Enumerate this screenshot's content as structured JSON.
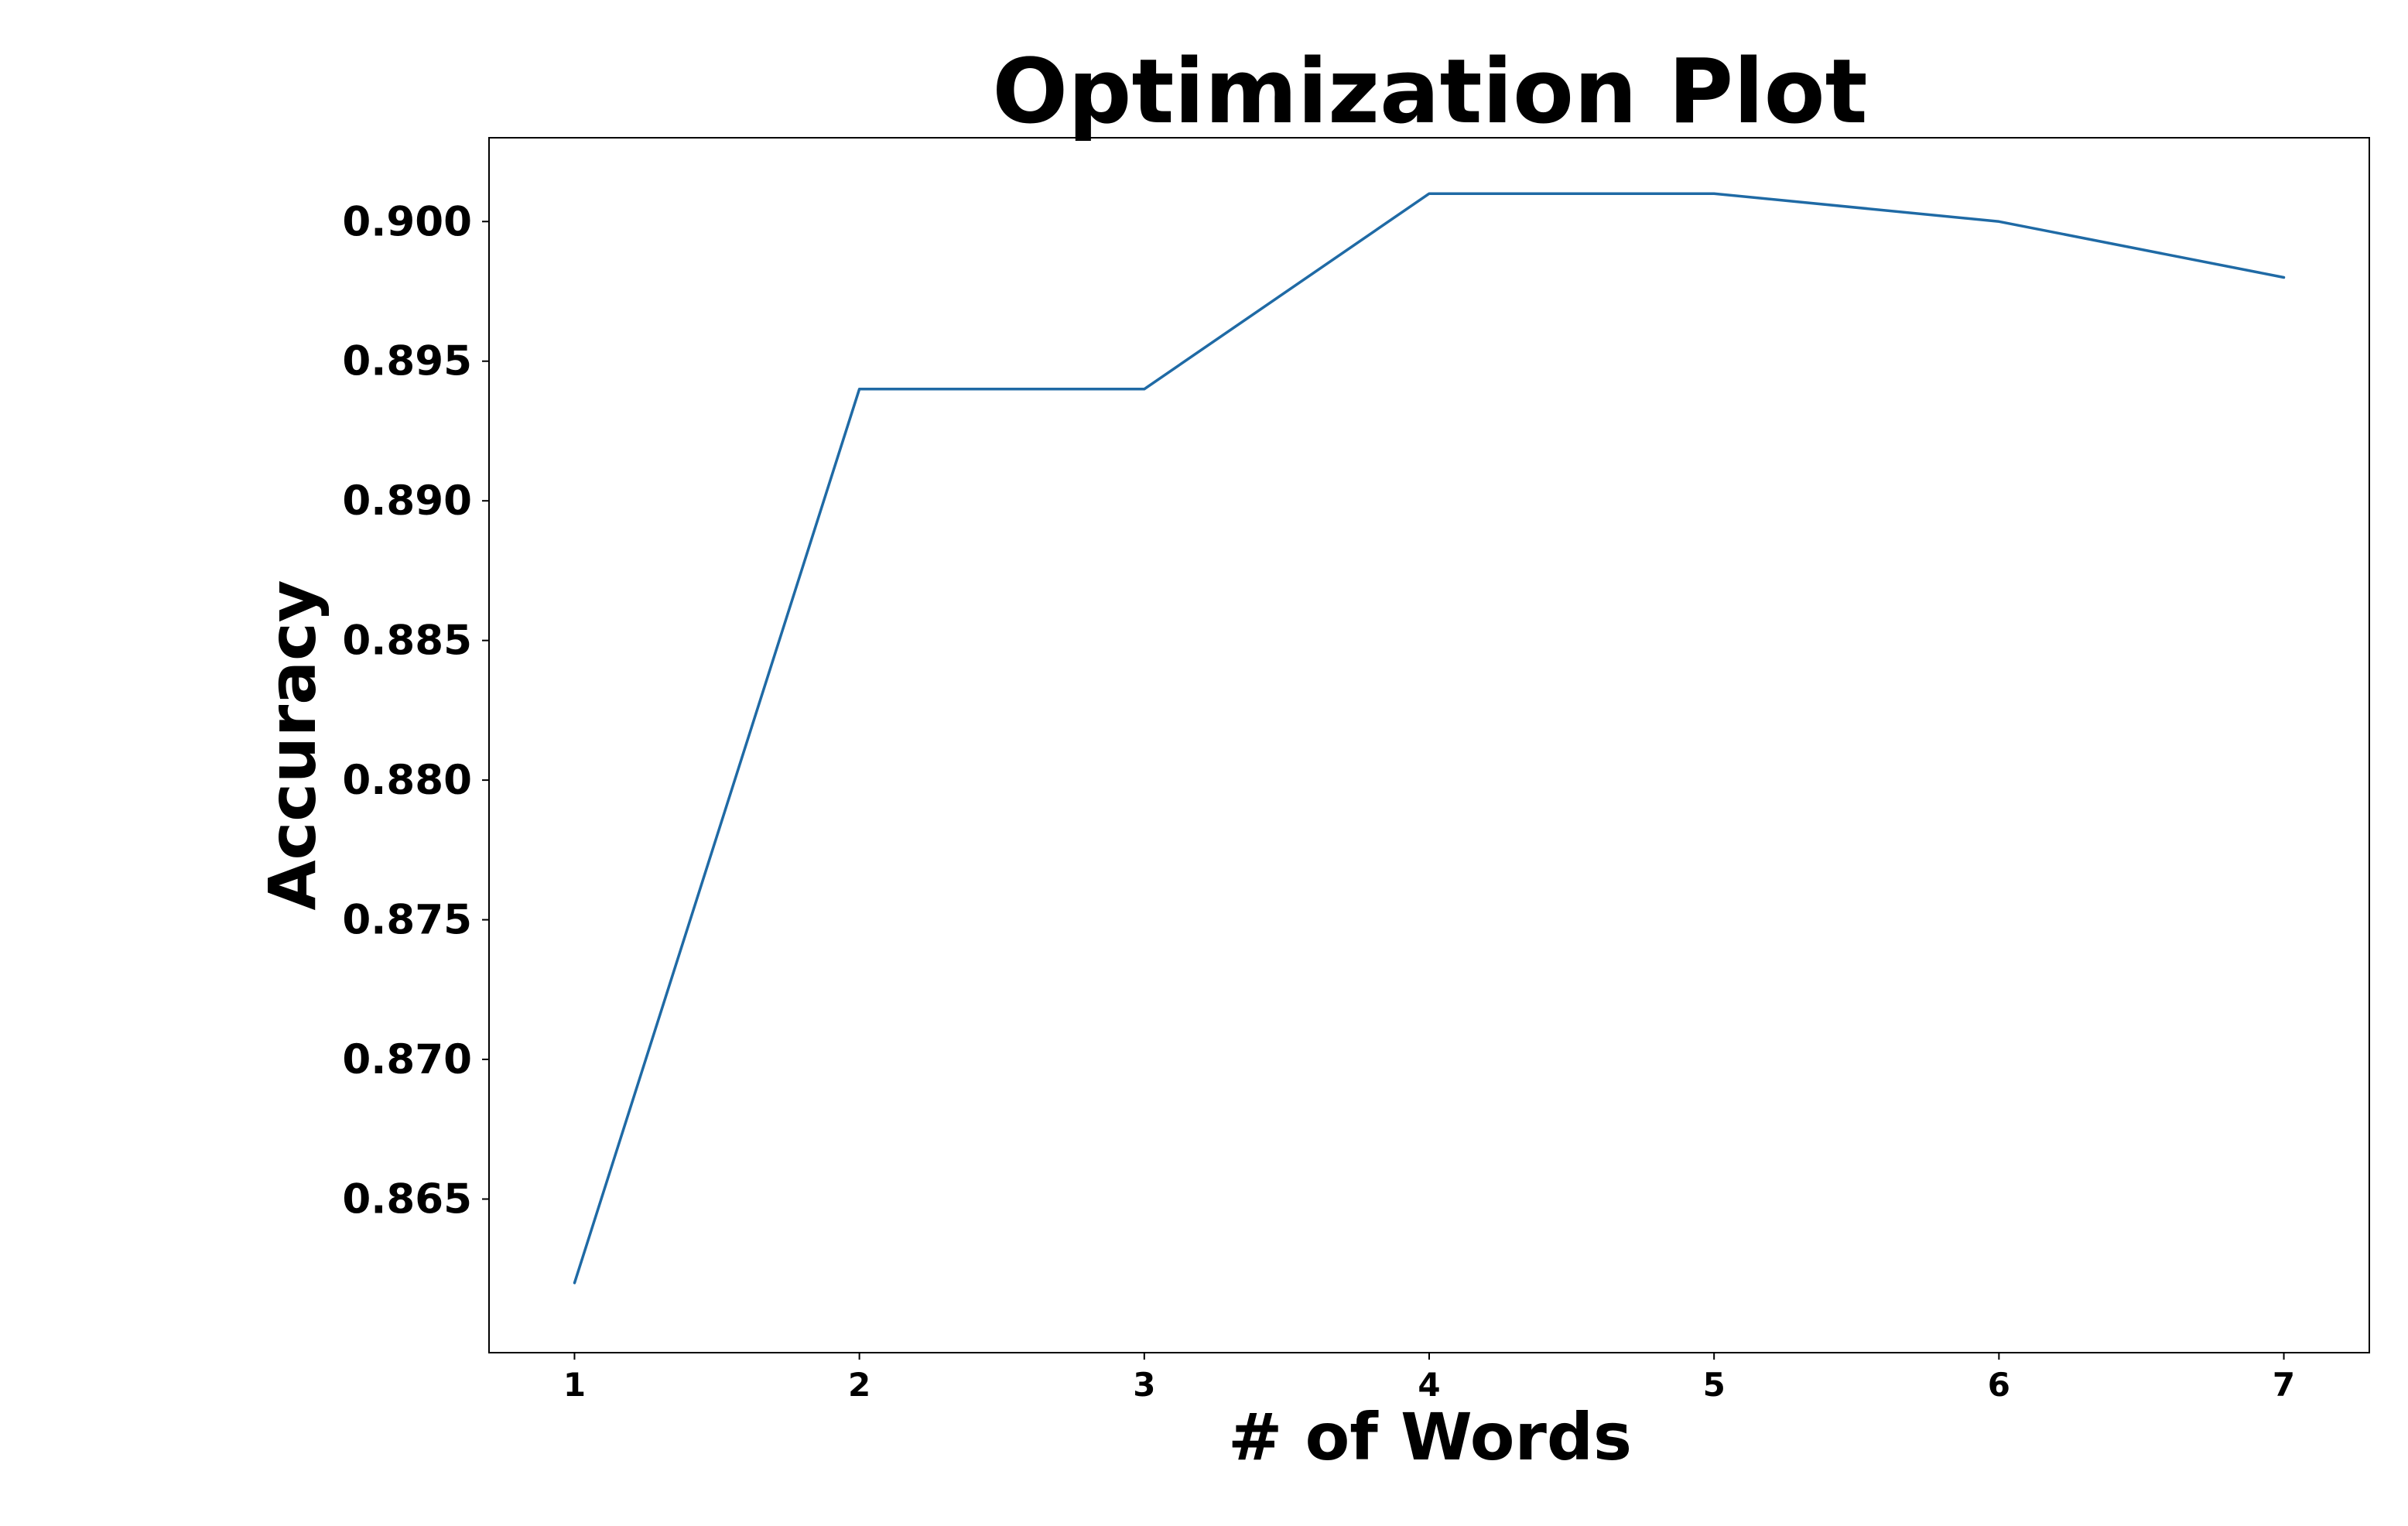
{
  "chart_data": {
    "type": "line",
    "title": "Optimization Plot",
    "xlabel": "# of Words",
    "ylabel": "Accuracy",
    "x": [
      1,
      2,
      3,
      4,
      5,
      6,
      7
    ],
    "series": [
      {
        "values": [
          0.862,
          0.894,
          0.894,
          0.901,
          0.901,
          0.9,
          0.898
        ],
        "color": "#1f6aa5"
      }
    ],
    "xticks": [
      "1",
      "2",
      "3",
      "4",
      "5",
      "6",
      "7"
    ],
    "yticks": [
      "0.865",
      "0.870",
      "0.875",
      "0.880",
      "0.885",
      "0.890",
      "0.895",
      "0.900"
    ],
    "xlim": [
      0.7,
      7.3
    ],
    "ylim": [
      0.8595,
      0.903
    ],
    "grid": false
  }
}
